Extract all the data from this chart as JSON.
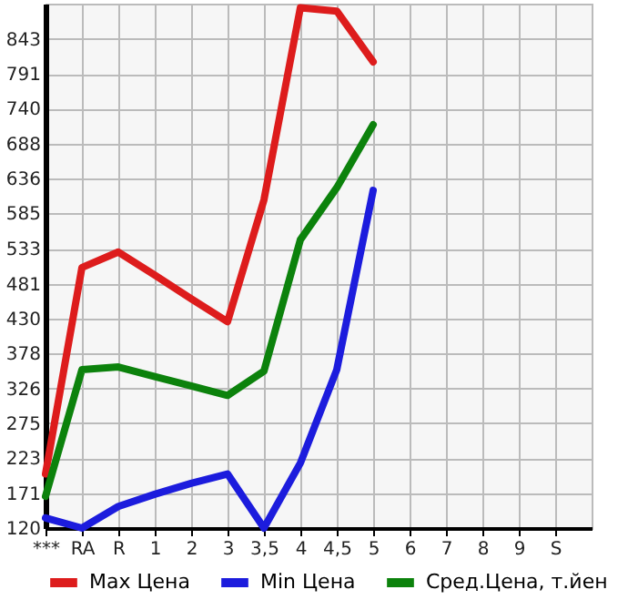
{
  "chart_data": {
    "type": "line",
    "categories": [
      "***",
      "RA",
      "R",
      "1",
      "2",
      "3",
      "3,5",
      "4",
      "4,5",
      "5",
      "6",
      "7",
      "8",
      "9",
      "S"
    ],
    "series": [
      {
        "name": "Max Цена",
        "color": "#dd1c1c",
        "values": [
          200,
          505,
          528,
          494,
          459,
          425,
          605,
          889,
          884,
          809,
          null,
          null,
          null,
          null,
          null
        ]
      },
      {
        "name": "Min Цена",
        "color": "#1c1cdd",
        "values": [
          135,
          120,
          152,
          170,
          186,
          200,
          120,
          216,
          354,
          619,
          null,
          null,
          null,
          null,
          null
        ]
      },
      {
        "name": "Сред.Цена, т.йен",
        "color": "#0c820c",
        "values": [
          167,
          354,
          358,
          344,
          330,
          316,
          352,
          546,
          623,
          716,
          null,
          null,
          null,
          null,
          null
        ]
      }
    ],
    "ylim": [
      120,
      895
    ],
    "yticks": [
      120,
      171,
      223,
      275,
      326,
      378,
      430,
      481,
      533,
      585,
      636,
      688,
      740,
      791,
      843
    ],
    "grid": true,
    "legend": "bottom",
    "marker": "none",
    "line_style": "solid"
  }
}
